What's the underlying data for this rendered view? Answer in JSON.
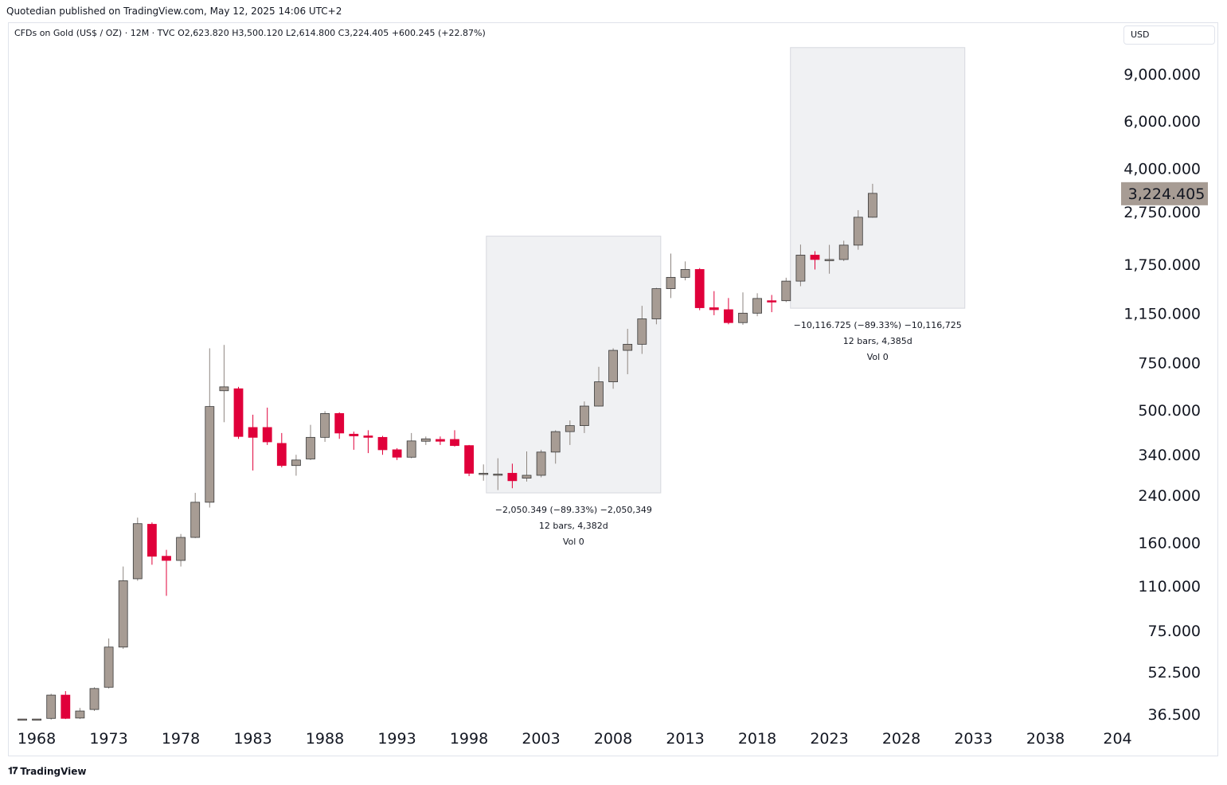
{
  "publish_line": "Quotedian published on TradingView.com, May 12, 2025 14:06 UTC+2",
  "legend": {
    "symbol": "CFDs on Gold (US$ / OZ) · 12M · TVC",
    "open": "O2,623.820",
    "high": "H3,500.120",
    "low": "L2,614.800",
    "close": "C3,224.405",
    "change": "+600.245 (+22.87%)"
  },
  "currency_label": "USD",
  "footer_brand": "TradingView",
  "colors": {
    "up": "#a79c94",
    "down": "#e0003a",
    "box": "#f0f1f3",
    "price_tag": "#a79c94"
  },
  "chart_data": {
    "type": "candlestick",
    "y_scale": "log",
    "x_ticks": [
      "1968",
      "1973",
      "1978",
      "1983",
      "1988",
      "1993",
      "1998",
      "2003",
      "2008",
      "2013",
      "2018",
      "2023",
      "2028",
      "2033",
      "2038",
      "204"
    ],
    "y_ticks": [
      "9,000.000",
      "6,000.000",
      "4,000.000",
      "2,750.000",
      "1,750.000",
      "1,150.000",
      "750.000",
      "500.000",
      "340.000",
      "240.000",
      "160.000",
      "110.000",
      "75.000",
      "52.500",
      "36.500"
    ],
    "last_price": "3,224.405",
    "candles": [
      {
        "year": 1968,
        "o": 35,
        "h": 35,
        "l": 35,
        "c": 35
      },
      {
        "year": 1969,
        "o": 35,
        "h": 35,
        "l": 35,
        "c": 35
      },
      {
        "year": 1970,
        "o": 35.2,
        "h": 43.5,
        "l": 34.8,
        "c": 43
      },
      {
        "year": 1971,
        "o": 43,
        "h": 44.5,
        "l": 35,
        "c": 35.2
      },
      {
        "year": 1972,
        "o": 35.3,
        "h": 38.5,
        "l": 35,
        "c": 37.5
      },
      {
        "year": 1973,
        "o": 38,
        "h": 46,
        "l": 37.5,
        "c": 45.5
      },
      {
        "year": 1974,
        "o": 46,
        "h": 70,
        "l": 45.5,
        "c": 65
      },
      {
        "year": 1975,
        "o": 65,
        "h": 130,
        "l": 64,
        "c": 115
      },
      {
        "year": 1976,
        "o": 117,
        "h": 198,
        "l": 115,
        "c": 188
      },
      {
        "year": 1977,
        "o": 187,
        "h": 190,
        "l": 132,
        "c": 142
      },
      {
        "year": 1978,
        "o": 142,
        "h": 150,
        "l": 101,
        "c": 137
      },
      {
        "year": 1979,
        "o": 137,
        "h": 172,
        "l": 130,
        "c": 167
      },
      {
        "year": 1980,
        "o": 167,
        "h": 245,
        "l": 166,
        "c": 226
      },
      {
        "year": 1981,
        "o": 226,
        "h": 850,
        "l": 216,
        "c": 515
      },
      {
        "year": 1982,
        "o": 590,
        "h": 875,
        "l": 450,
        "c": 610
      },
      {
        "year": 1983,
        "o": 600,
        "h": 610,
        "l": 390,
        "c": 398
      },
      {
        "year": 1984,
        "o": 430,
        "h": 480,
        "l": 297,
        "c": 395
      },
      {
        "year": 1985,
        "o": 430,
        "h": 510,
        "l": 370,
        "c": 380
      },
      {
        "year": 1986,
        "o": 375,
        "h": 410,
        "l": 305,
        "c": 310
      },
      {
        "year": 1987,
        "o": 310,
        "h": 340,
        "l": 284,
        "c": 325
      },
      {
        "year": 1988,
        "o": 328,
        "h": 440,
        "l": 325,
        "c": 395
      },
      {
        "year": 1989,
        "o": 395,
        "h": 495,
        "l": 380,
        "c": 485
      },
      {
        "year": 1990,
        "o": 485,
        "h": 490,
        "l": 390,
        "c": 410
      },
      {
        "year": 1991,
        "o": 406,
        "h": 415,
        "l": 355,
        "c": 400
      },
      {
        "year": 1992,
        "o": 400,
        "h": 420,
        "l": 345,
        "c": 395
      },
      {
        "year": 1993,
        "o": 395,
        "h": 400,
        "l": 340,
        "c": 355
      },
      {
        "year": 1994,
        "o": 355,
        "h": 360,
        "l": 325,
        "c": 333
      },
      {
        "year": 1995,
        "o": 333,
        "h": 410,
        "l": 330,
        "c": 383
      },
      {
        "year": 1996,
        "o": 382,
        "h": 398,
        "l": 370,
        "c": 390
      },
      {
        "year": 1997,
        "o": 388,
        "h": 398,
        "l": 370,
        "c": 382
      },
      {
        "year": 1998,
        "o": 388,
        "h": 420,
        "l": 365,
        "c": 368
      },
      {
        "year": 1999,
        "o": 368,
        "h": 370,
        "l": 283,
        "c": 290
      },
      {
        "year": 2000,
        "o": 287,
        "h": 313,
        "l": 272,
        "c": 290
      },
      {
        "year": 2001,
        "o": 288,
        "h": 330,
        "l": 251,
        "c": 288
      },
      {
        "year": 2002,
        "o": 290,
        "h": 315,
        "l": 255,
        "c": 272
      },
      {
        "year": 2003,
        "o": 278,
        "h": 350,
        "l": 270,
        "c": 285
      },
      {
        "year": 2004,
        "o": 285,
        "h": 355,
        "l": 280,
        "c": 348
      },
      {
        "year": 2005,
        "o": 348,
        "h": 420,
        "l": 315,
        "c": 415
      },
      {
        "year": 2006,
        "o": 415,
        "h": 457,
        "l": 370,
        "c": 437
      },
      {
        "year": 2007,
        "o": 437,
        "h": 538,
        "l": 410,
        "c": 517
      },
      {
        "year": 2008,
        "o": 517,
        "h": 725,
        "l": 515,
        "c": 637
      },
      {
        "year": 2009,
        "o": 637,
        "h": 850,
        "l": 600,
        "c": 835
      },
      {
        "year": 2010,
        "o": 835,
        "h": 1005,
        "l": 680,
        "c": 880
      },
      {
        "year": 2011,
        "o": 880,
        "h": 1225,
        "l": 810,
        "c": 1095
      },
      {
        "year": 2012,
        "o": 1095,
        "h": 1430,
        "l": 1045,
        "c": 1420
      },
      {
        "year": 2013,
        "o": 1420,
        "h": 1920,
        "l": 1310,
        "c": 1565
      },
      {
        "year": 2014,
        "o": 1565,
        "h": 1795,
        "l": 1525,
        "c": 1675
      },
      {
        "year": 2015,
        "o": 1675,
        "h": 1695,
        "l": 1180,
        "c": 1205
      },
      {
        "year": 2016,
        "o": 1205,
        "h": 1390,
        "l": 1130,
        "c": 1185
      },
      {
        "year": 2017,
        "o": 1185,
        "h": 1310,
        "l": 1045,
        "c": 1060
      },
      {
        "year": 2018,
        "o": 1060,
        "h": 1375,
        "l": 1040,
        "c": 1150
      },
      {
        "year": 2019,
        "o": 1150,
        "h": 1365,
        "l": 1120,
        "c": 1305
      },
      {
        "year": 2020,
        "o": 1280,
        "h": 1345,
        "l": 1160,
        "c": 1265
      },
      {
        "year": 2021,
        "o": 1280,
        "h": 1560,
        "l": 1265,
        "c": 1515
      },
      {
        "year": 2022,
        "o": 1515,
        "h": 2075,
        "l": 1450,
        "c": 1895
      },
      {
        "year": 2023,
        "o": 1895,
        "h": 1960,
        "l": 1675,
        "c": 1825
      },
      {
        "year": 2024,
        "o": 1825,
        "h": 2070,
        "l": 1615,
        "c": 1825
      },
      {
        "year": 2025,
        "o": 1825,
        "h": 2145,
        "l": 1800,
        "c": 2065
      },
      {
        "year": 2026,
        "o": 2065,
        "h": 2790,
        "l": 1985,
        "c": 2625
      },
      {
        "year": 2027,
        "o": 2625,
        "h": 3500,
        "l": 2615,
        "c": 3224
      }
    ],
    "measure_boxes": [
      {
        "x_from": 2000.2,
        "x_to": 2012.3,
        "y_top": 2230,
        "y_bottom": 245,
        "lines": [
          "−2,050.349 (−89.33%) −2,050,349",
          "12 bars, 4,382d",
          "Vol 0"
        ]
      },
      {
        "x_from": 2021.3,
        "x_to": 2033.4,
        "y_top": 11300,
        "y_bottom": 1200,
        "lines": [
          "−10,116.725 (−89.33%) −10,116,725",
          "12 bars, 4,385d",
          "Vol 0"
        ]
      }
    ]
  }
}
